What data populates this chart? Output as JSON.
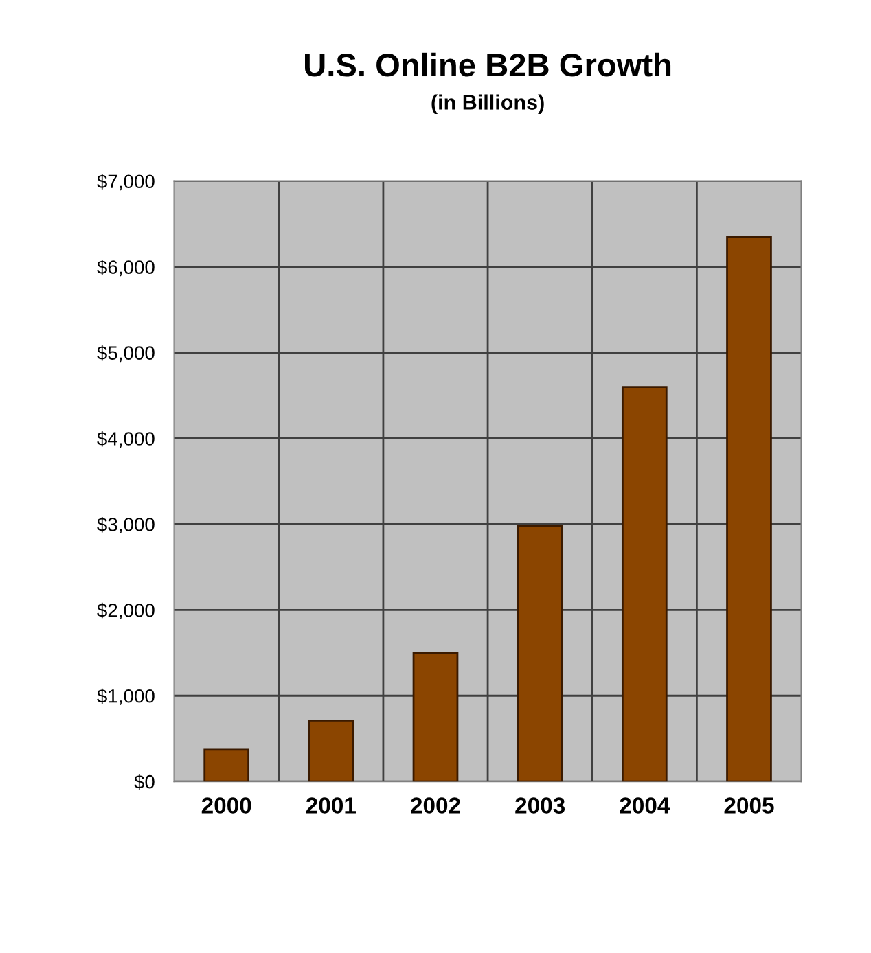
{
  "chart_data": {
    "type": "bar",
    "title": "U.S. Online B2B Growth",
    "subtitle": "(in Billions)",
    "categories": [
      "2000",
      "2001",
      "2002",
      "2003",
      "2004",
      "2005"
    ],
    "values": [
      370,
      710,
      1500,
      2980,
      4600,
      6350
    ],
    "color": "#8b4500",
    "ylim": [
      0,
      7000
    ],
    "yticks": [
      {
        "value": 0,
        "label": "$0"
      },
      {
        "value": 1000,
        "label": "$1,000"
      },
      {
        "value": 2000,
        "label": "$2,000"
      },
      {
        "value": 3000,
        "label": "$3,000"
      },
      {
        "value": 4000,
        "label": "$4,000"
      },
      {
        "value": 5000,
        "label": "$5,000"
      },
      {
        "value": 6000,
        "label": "$6,000"
      },
      {
        "value": 7000,
        "label": "$7,000"
      }
    ],
    "grid": true
  }
}
